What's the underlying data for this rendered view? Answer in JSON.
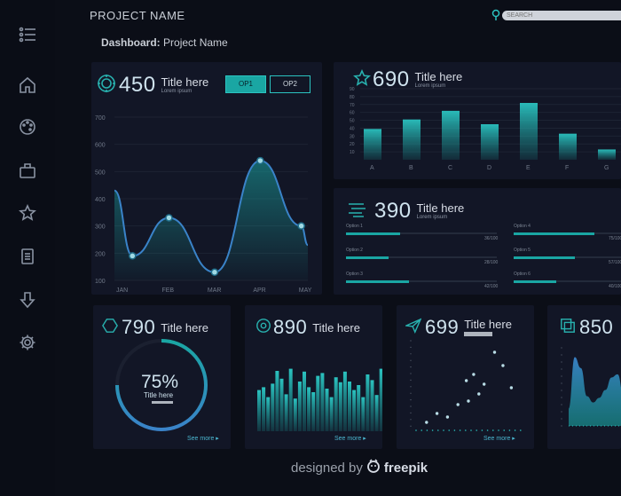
{
  "topbar": {
    "project_title": "PROJECT NAME",
    "search_placeholder": "SEARCH"
  },
  "breadcrumb": {
    "label": "Dashboard:",
    "value": "Project Name"
  },
  "sidebar": {
    "icons": [
      "menu-icon",
      "home-icon",
      "palette-icon",
      "briefcase-icon",
      "star-icon",
      "document-icon",
      "download-icon",
      "gear-icon"
    ]
  },
  "colors": {
    "accent": "#1aa6a3",
    "accent_light": "#2bc3c0",
    "blue": "#3a83c9",
    "panel": "#121626",
    "background": "#0b0e17"
  },
  "panel_main": {
    "value": "450",
    "title": "Title here",
    "subtitle": "Lorem ipsum",
    "op1": "OP1",
    "op2": "OP2",
    "chart_data": {
      "type": "area",
      "categories": [
        "JAN",
        "FEB",
        "MAR",
        "APR",
        "MAY"
      ],
      "x": [
        0.2,
        1,
        2,
        3,
        3.9
      ],
      "values": [
        190,
        330,
        130,
        540,
        300
      ],
      "yticks": [
        100,
        200,
        300,
        400,
        500,
        600,
        700
      ],
      "ylim": [
        100,
        700
      ]
    }
  },
  "panel_bar": {
    "value": "690",
    "title": "Title here",
    "subtitle": "Lorem ipsum",
    "chart_data": {
      "type": "bar",
      "categories": [
        "A",
        "B",
        "C",
        "D",
        "E",
        "F",
        "G"
      ],
      "values": [
        39,
        51,
        62,
        45,
        72,
        33,
        13
      ],
      "yticks": [
        10,
        20,
        30,
        40,
        50,
        60,
        70,
        80,
        90
      ],
      "ylim": [
        0,
        90
      ]
    }
  },
  "panel_options": {
    "value": "390",
    "title": "Title here",
    "subtitle": "Lorem ipsum",
    "options": [
      {
        "label": "Option 1",
        "value": "36/100",
        "fill": 0.36
      },
      {
        "label": "Option 2",
        "value": "28/100",
        "fill": 0.28
      },
      {
        "label": "Option 3",
        "value": "42/100",
        "fill": 0.42
      },
      {
        "label": "Option 4",
        "value": "75/100",
        "fill": 0.75
      },
      {
        "label": "Option 5",
        "value": "57/100",
        "fill": 0.57
      },
      {
        "label": "Option 6",
        "value": "40/100",
        "fill": 0.4
      }
    ]
  },
  "panel_donut": {
    "value": "790",
    "title": "Title here",
    "percent": "75%",
    "percent_value": 75,
    "caption": "Title here",
    "see_more": "See more ▸"
  },
  "panel_columns": {
    "value": "890",
    "title": "Title here",
    "see_more": "See more ▸",
    "chart_data": {
      "type": "bar",
      "values": [
        58,
        62,
        48,
        67,
        85,
        74,
        52,
        88,
        46,
        70,
        84,
        62,
        55,
        78,
        82,
        60,
        48,
        76,
        69,
        84,
        70,
        58,
        65,
        48,
        80,
        72,
        51,
        88
      ],
      "ylim": [
        0,
        100
      ]
    }
  },
  "panel_scatter": {
    "value": "699",
    "title": "Title here",
    "see_more": "See more ▸",
    "chart_data": {
      "type": "scatter",
      "points": [
        [
          1,
          8
        ],
        [
          2,
          18
        ],
        [
          3,
          14
        ],
        [
          4,
          28
        ],
        [
          5,
          32
        ],
        [
          5.5,
          62
        ],
        [
          6.5,
          51
        ],
        [
          7.5,
          87
        ],
        [
          8.3,
          72
        ],
        [
          9.1,
          47
        ],
        [
          4.8,
          55
        ],
        [
          6,
          40
        ]
      ],
      "xlim": [
        0,
        10
      ],
      "ylim": [
        0,
        100
      ]
    }
  },
  "panel_area2": {
    "value": "850",
    "chart_data": {
      "type": "area",
      "x": [
        0,
        1,
        2,
        3,
        4,
        5,
        6,
        7,
        8,
        9,
        10
      ],
      "values": [
        22,
        88,
        74,
        38,
        30,
        36,
        46,
        62,
        66,
        38,
        16
      ],
      "ylim": [
        0,
        100
      ]
    }
  },
  "footer": {
    "prefix": "designed by",
    "brand": "freepik"
  }
}
